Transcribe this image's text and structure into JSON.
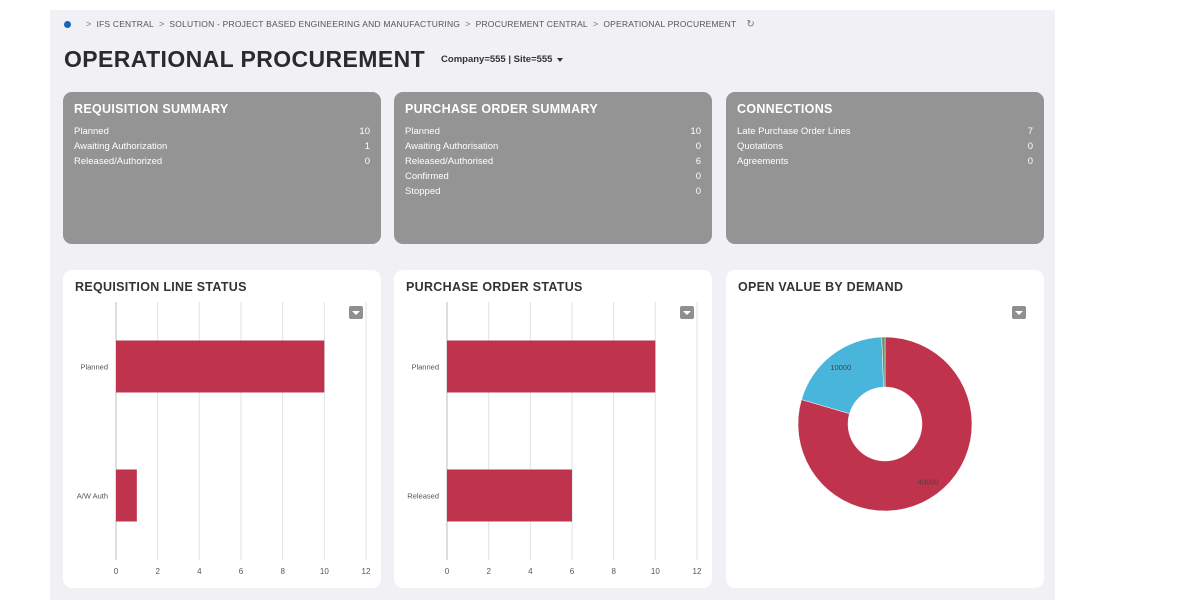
{
  "breadcrumb": {
    "items": [
      "IFS CENTRAL",
      "SOLUTION - PROJECT BASED ENGINEERING AND MANUFACTURING",
      "PROCUREMENT CENTRAL",
      "OPERATIONAL PROCUREMENT"
    ],
    "separator": ">"
  },
  "header": {
    "title": "OPERATIONAL PROCUREMENT",
    "context": "Company=555 | Site=555"
  },
  "requisition_summary": {
    "title": "REQUISITION SUMMARY",
    "rows": [
      {
        "label": "Planned",
        "value": "10"
      },
      {
        "label": "Awaiting Authorization",
        "value": "1"
      },
      {
        "label": "Released/Authorized",
        "value": "0"
      }
    ]
  },
  "purchase_order_summary": {
    "title": "PURCHASE ORDER SUMMARY",
    "rows": [
      {
        "label": "Planned",
        "value": "10"
      },
      {
        "label": "Awaiting Authorisation",
        "value": "0"
      },
      {
        "label": "Released/Authorised",
        "value": "6"
      },
      {
        "label": "Confirmed",
        "value": "0"
      },
      {
        "label": "Stopped",
        "value": "0"
      }
    ]
  },
  "connections": {
    "title": "CONNECTIONS",
    "rows": [
      {
        "label": "Late Purchase Order Lines",
        "value": "7"
      },
      {
        "label": "Quotations",
        "value": "0"
      },
      {
        "label": "Agreements",
        "value": "0"
      }
    ]
  },
  "colors": {
    "bar": "#c0334d",
    "donut_primary": "#c0334d",
    "donut_secondary": "#4ab5da",
    "donut_small": "#6a8f6a",
    "summary_card": "#949494",
    "home": "#1565c0"
  },
  "chart_data": [
    {
      "type": "bar",
      "orientation": "horizontal",
      "title": "REQUISITION LINE STATUS",
      "categories": [
        "Planned",
        "A/W Auth"
      ],
      "values": [
        10,
        1
      ],
      "xlim": [
        0,
        12
      ],
      "xticks": [
        0,
        2,
        4,
        6,
        8,
        10,
        12
      ],
      "grid": true
    },
    {
      "type": "bar",
      "orientation": "horizontal",
      "title": "PURCHASE ORDER STATUS",
      "categories": [
        "Planned",
        "Released"
      ],
      "values": [
        10,
        6
      ],
      "xlim": [
        0,
        12
      ],
      "xticks": [
        0,
        2,
        4,
        6,
        8,
        10,
        12
      ],
      "grid": true
    },
    {
      "type": "pie",
      "style": "donut",
      "title": "OPEN VALUE BY DEMAND",
      "slices": [
        {
          "value": 40000,
          "label": "40000"
        },
        {
          "value": 10000,
          "label": "10000"
        },
        {
          "value": 300,
          "label": ""
        }
      ]
    }
  ]
}
